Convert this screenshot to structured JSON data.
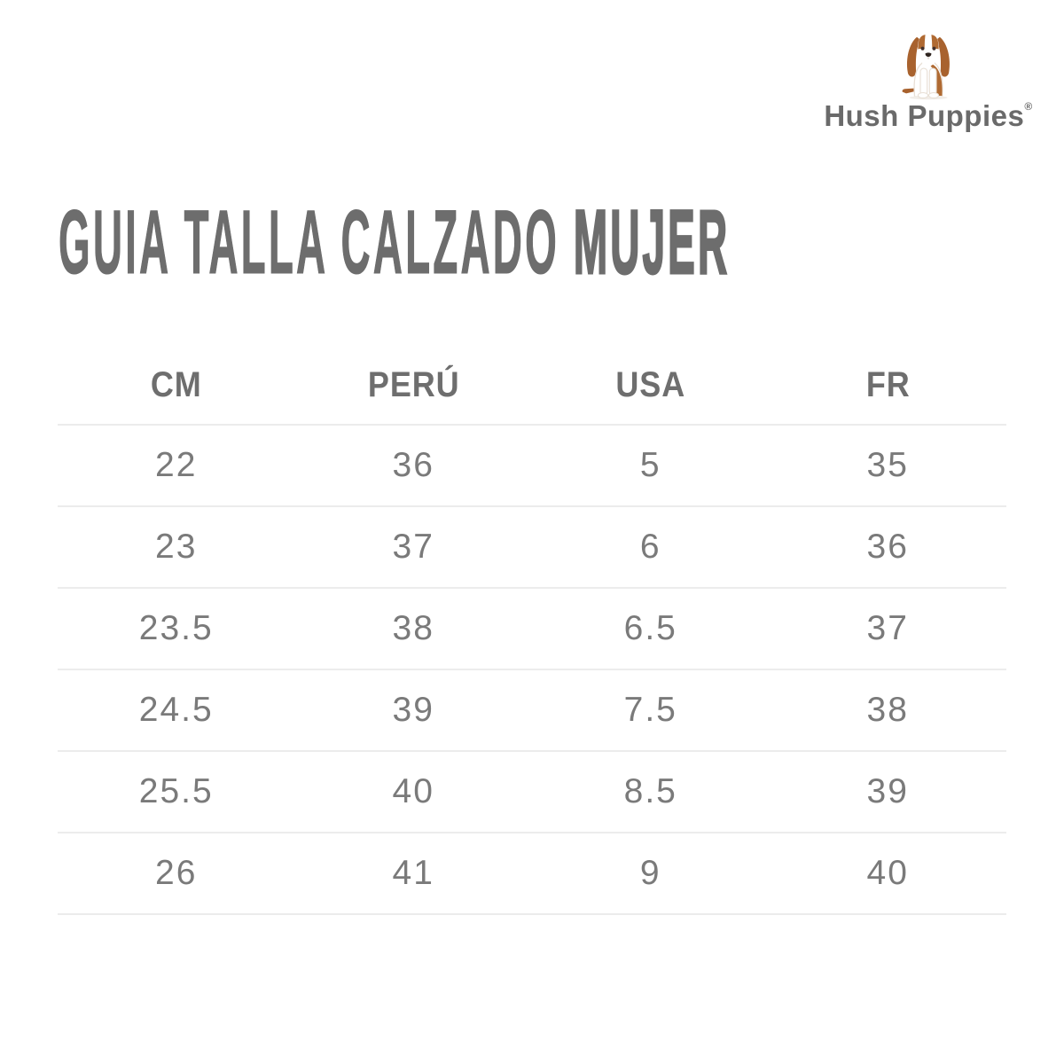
{
  "brand": {
    "name": "Hush Puppies",
    "registered_mark": "®",
    "logo_icon": "basset-hound"
  },
  "title": {
    "regular": "GUIA TALLA CALZADO",
    "bold": "MUJER"
  },
  "chart_data": {
    "type": "table",
    "title": "GUIA TALLA CALZADO MUJER",
    "columns": [
      "CM",
      "PERÚ",
      "USA",
      "FR"
    ],
    "rows": [
      [
        "22",
        "36",
        "5",
        "35"
      ],
      [
        "23",
        "37",
        "6",
        "36"
      ],
      [
        "23.5",
        "38",
        "6.5",
        "37"
      ],
      [
        "24.5",
        "39",
        "7.5",
        "38"
      ],
      [
        "25.5",
        "40",
        "8.5",
        "39"
      ],
      [
        "26",
        "41",
        "9",
        "40"
      ]
    ]
  },
  "colors": {
    "title_text": "#6d6d6d",
    "header_text": "#6e6e6e",
    "cell_text": "#7a7a7a",
    "divider": "#ececec",
    "brand_text": "#6a6a6a",
    "dog_brown": "#a8622e",
    "dog_brown_dark": "#b06a32",
    "background": "#ffffff"
  }
}
